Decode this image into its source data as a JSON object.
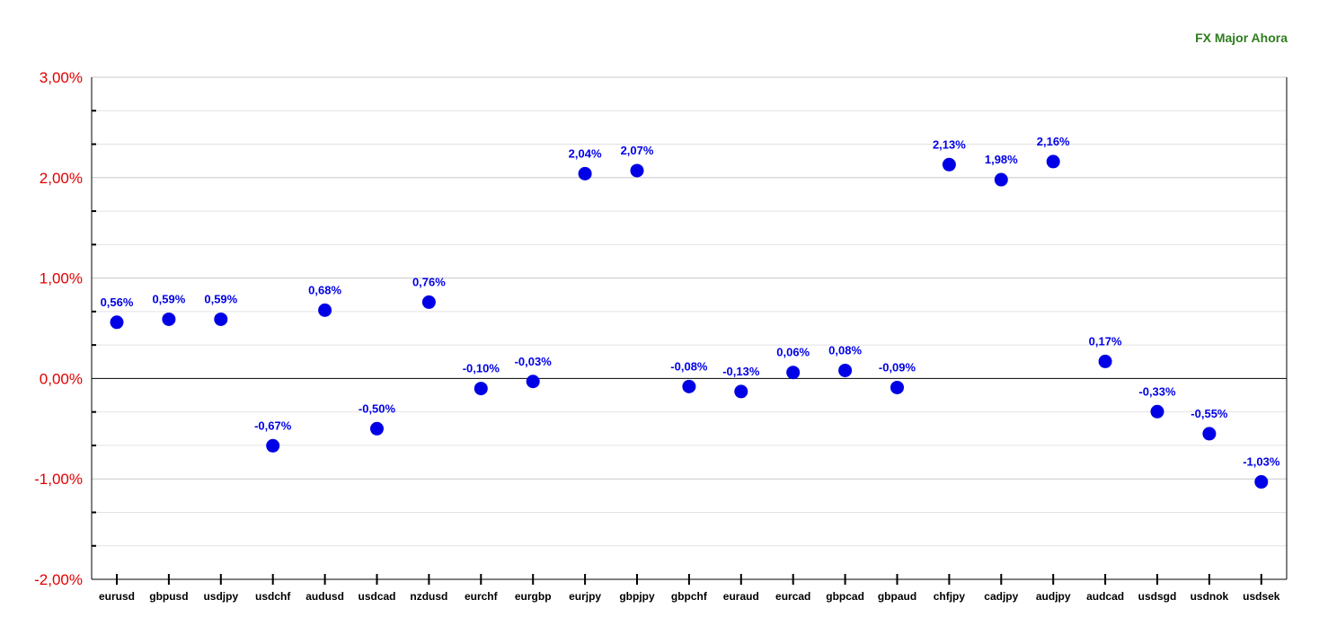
{
  "title": "FX Major Ahora",
  "chart_data": {
    "type": "scatter",
    "title": "FX Major Ahora",
    "xlabel": "",
    "ylabel": "",
    "ylim": [
      -2.0,
      3.0
    ],
    "ytick_labels": [
      "3,00%",
      "2,00%",
      "1,00%",
      "0,00%",
      "-1,00%",
      "-2,00%"
    ],
    "ytick_values": [
      3,
      2,
      1,
      0,
      -1,
      -2
    ],
    "grid": true,
    "marker_color": "#0000e6",
    "categories": [
      "eurusd",
      "gbpusd",
      "usdjpy",
      "usdchf",
      "audusd",
      "usdcad",
      "nzdusd",
      "eurchf",
      "eurgbp",
      "eurjpy",
      "gbpjpy",
      "gbpchf",
      "euraud",
      "eurcad",
      "gbpcad",
      "gbpaud",
      "chfjpy",
      "cadjpy",
      "audjpy",
      "audcad",
      "usdsgd",
      "usdnok",
      "usdsek"
    ],
    "values": [
      0.56,
      0.59,
      0.59,
      -0.67,
      0.68,
      -0.5,
      0.76,
      -0.1,
      -0.03,
      2.04,
      2.07,
      -0.08,
      -0.13,
      0.06,
      0.08,
      -0.09,
      2.13,
      1.98,
      2.16,
      0.17,
      -0.33,
      -0.55,
      -1.03
    ],
    "value_labels": [
      "0,56%",
      "0,59%",
      "0,59%",
      "-0,67%",
      "0,68%",
      "-0,50%",
      "0,76%",
      "-0,10%",
      "-0,03%",
      "2,04%",
      "2,07%",
      "-0,08%",
      "-0,13%",
      "0,06%",
      "0,08%",
      "-0,09%",
      "2,13%",
      "1,98%",
      "2,16%",
      "0,17%",
      "-0,33%",
      "-0,55%",
      "-1,03%"
    ]
  }
}
